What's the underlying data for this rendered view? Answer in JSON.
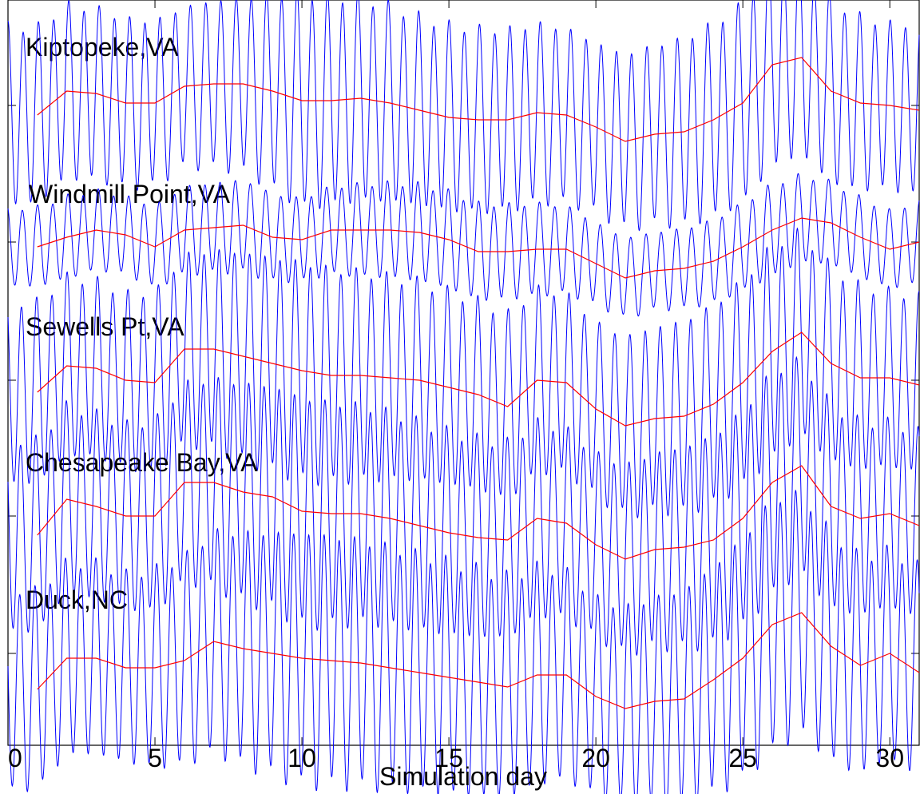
{
  "chart_data": {
    "type": "line",
    "xlabel": "Simulation day",
    "ylabel": "",
    "xlim": [
      0,
      31
    ],
    "xticks": [
      0,
      5,
      10,
      15,
      20,
      25,
      30
    ],
    "xtick_labels": [
      "0",
      "5",
      "10",
      "15",
      "20",
      "25",
      "30"
    ],
    "grid": false,
    "colors": {
      "observed": "#0000ff",
      "subtidal": "#ff0000",
      "axes": "#000000"
    },
    "stations": [
      {
        "label": "Kiptopeke,VA",
        "subtidal_days": [
          1,
          2,
          3,
          4,
          5,
          6,
          7,
          8,
          9,
          10,
          11,
          12,
          13,
          14,
          15,
          16,
          17,
          18,
          19,
          20,
          21,
          22,
          23,
          24,
          25,
          26,
          27,
          28,
          29,
          30,
          31
        ],
        "subtidal_values": [
          -0.04,
          0.06,
          0.05,
          0.01,
          0.01,
          0.08,
          0.09,
          0.09,
          0.06,
          0.02,
          0.02,
          0.03,
          0.01,
          -0.02,
          -0.05,
          -0.06,
          -0.06,
          -0.03,
          -0.04,
          -0.09,
          -0.15,
          -0.12,
          -0.11,
          -0.06,
          0.01,
          0.17,
          0.2,
          0.06,
          0.01,
          0.0,
          -0.02
        ],
        "tide_envelope_days": [
          0,
          2,
          4,
          6,
          8,
          10,
          12,
          14,
          16,
          18,
          20,
          22,
          24,
          26,
          28,
          30,
          31
        ],
        "tide_amplitude": [
          0.37,
          0.36,
          0.35,
          0.33,
          0.36,
          0.44,
          0.42,
          0.39,
          0.38,
          0.37,
          0.35,
          0.37,
          0.4,
          0.42,
          0.38,
          0.34,
          0.36
        ]
      },
      {
        "label": "Windmill Point,VA",
        "subtidal_days": [
          1,
          2,
          3,
          4,
          5,
          6,
          7,
          8,
          9,
          10,
          11,
          12,
          13,
          14,
          15,
          16,
          17,
          18,
          19,
          20,
          21,
          22,
          23,
          24,
          25,
          26,
          27,
          28,
          29,
          30,
          31
        ],
        "subtidal_values": [
          -0.02,
          0.02,
          0.05,
          0.03,
          -0.02,
          0.05,
          0.06,
          0.07,
          0.02,
          0.01,
          0.05,
          0.05,
          0.05,
          0.04,
          0.01,
          -0.04,
          -0.04,
          -0.03,
          -0.03,
          -0.09,
          -0.15,
          -0.12,
          -0.11,
          -0.08,
          -0.02,
          0.05,
          0.1,
          0.08,
          0.02,
          -0.03,
          0.0
        ],
        "tide_envelope_days": [
          0,
          2,
          4,
          6,
          8,
          10,
          12,
          14,
          16,
          18,
          20,
          22,
          24,
          26,
          28,
          30,
          31
        ],
        "tide_amplitude": [
          0.16,
          0.17,
          0.16,
          0.18,
          0.19,
          0.17,
          0.19,
          0.2,
          0.2,
          0.19,
          0.17,
          0.16,
          0.17,
          0.19,
          0.17,
          0.16,
          0.17
        ]
      },
      {
        "label": "Sewells Pt,VA",
        "subtidal_days": [
          1,
          2,
          3,
          4,
          5,
          6,
          7,
          8,
          9,
          10,
          11,
          12,
          13,
          14,
          15,
          16,
          17,
          18,
          19,
          20,
          21,
          22,
          23,
          24,
          25,
          26,
          27,
          28,
          29,
          30,
          31
        ],
        "subtidal_values": [
          -0.05,
          0.06,
          0.05,
          0.0,
          -0.01,
          0.13,
          0.13,
          0.1,
          0.07,
          0.04,
          0.02,
          0.02,
          0.01,
          0.0,
          -0.03,
          -0.06,
          -0.11,
          0.0,
          -0.01,
          -0.12,
          -0.19,
          -0.16,
          -0.15,
          -0.1,
          -0.01,
          0.12,
          0.2,
          0.07,
          0.01,
          0.01,
          -0.02
        ],
        "tide_envelope_days": [
          0,
          2,
          4,
          6,
          8,
          10,
          12,
          14,
          16,
          18,
          20,
          22,
          24,
          26,
          28,
          30,
          31
        ],
        "tide_amplitude": [
          0.38,
          0.37,
          0.36,
          0.39,
          0.43,
          0.45,
          0.43,
          0.41,
          0.39,
          0.38,
          0.36,
          0.38,
          0.41,
          0.44,
          0.4,
          0.36,
          0.37
        ]
      },
      {
        "label": "Chesapeake Bay,VA",
        "subtidal_days": [
          1,
          2,
          3,
          4,
          5,
          6,
          7,
          8,
          9,
          10,
          11,
          12,
          13,
          14,
          15,
          16,
          17,
          18,
          19,
          20,
          21,
          22,
          23,
          24,
          25,
          26,
          27,
          28,
          29,
          30,
          31
        ],
        "subtidal_values": [
          -0.08,
          0.07,
          0.04,
          0.0,
          0.0,
          0.14,
          0.14,
          0.1,
          0.08,
          0.02,
          0.01,
          0.01,
          -0.01,
          -0.04,
          -0.07,
          -0.09,
          -0.1,
          -0.01,
          -0.03,
          -0.12,
          -0.18,
          -0.14,
          -0.13,
          -0.1,
          -0.01,
          0.14,
          0.21,
          0.04,
          -0.01,
          0.01,
          -0.04
        ],
        "tide_envelope_days": [
          0,
          2,
          4,
          6,
          8,
          10,
          12,
          14,
          16,
          18,
          20,
          22,
          24,
          26,
          28,
          30,
          31
        ],
        "tide_amplitude": [
          0.4,
          0.39,
          0.38,
          0.41,
          0.45,
          0.47,
          0.45,
          0.43,
          0.41,
          0.4,
          0.38,
          0.4,
          0.43,
          0.46,
          0.42,
          0.38,
          0.39
        ]
      },
      {
        "label": "Duck,NC",
        "subtidal_days": [
          1,
          2,
          3,
          4,
          5,
          6,
          7,
          8,
          9,
          10,
          11,
          12,
          13,
          14,
          15,
          16,
          17,
          18,
          19,
          20,
          21,
          22,
          23,
          24,
          25,
          26,
          27,
          28,
          29,
          30,
          31
        ],
        "subtidal_values": [
          -0.15,
          -0.02,
          -0.02,
          -0.06,
          -0.06,
          -0.03,
          0.05,
          0.02,
          0.0,
          -0.02,
          -0.03,
          -0.04,
          -0.06,
          -0.08,
          -0.1,
          -0.12,
          -0.14,
          -0.09,
          -0.09,
          -0.18,
          -0.23,
          -0.2,
          -0.19,
          -0.11,
          -0.02,
          0.12,
          0.17,
          0.03,
          -0.05,
          0.0,
          -0.08
        ],
        "tide_envelope_days": [
          0,
          2,
          4,
          6,
          8,
          10,
          12,
          14,
          16,
          18,
          20,
          22,
          24,
          26,
          28,
          30,
          31
        ],
        "tide_amplitude": [
          0.42,
          0.4,
          0.39,
          0.43,
          0.48,
          0.52,
          0.51,
          0.49,
          0.47,
          0.45,
          0.41,
          0.43,
          0.47,
          0.52,
          0.47,
          0.43,
          0.44
        ]
      }
    ]
  }
}
